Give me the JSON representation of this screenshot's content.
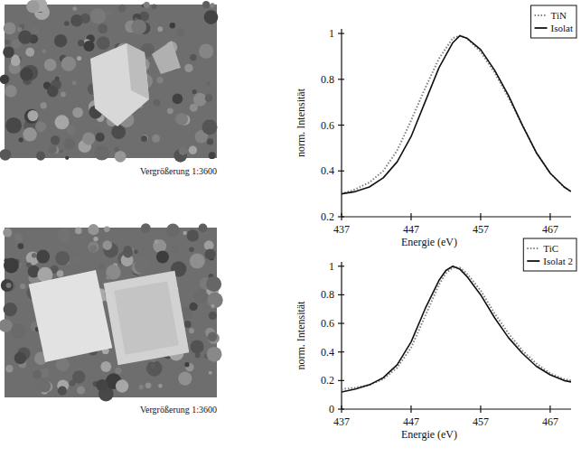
{
  "chart_data": [
    {
      "type": "line",
      "x_label": "Energie (eV)",
      "y_label": "norm. Intensität",
      "x": [
        437,
        439,
        441,
        443,
        445,
        447,
        449,
        451,
        453,
        454,
        455,
        457,
        459,
        461,
        463,
        465,
        467,
        469,
        470
      ],
      "series": [
        {
          "name": "TiN",
          "color": "#808080",
          "line_style": "dotted",
          "values": [
            0.3,
            0.32,
            0.35,
            0.4,
            0.49,
            0.62,
            0.76,
            0.89,
            0.98,
            0.99,
            0.98,
            0.92,
            0.83,
            0.72,
            0.6,
            0.48,
            0.39,
            0.33,
            0.31
          ]
        },
        {
          "name": "Isolat",
          "color": "#111111",
          "line_style": "solid",
          "values": [
            0.3,
            0.31,
            0.33,
            0.37,
            0.44,
            0.55,
            0.7,
            0.85,
            0.96,
            0.99,
            0.98,
            0.93,
            0.84,
            0.73,
            0.6,
            0.48,
            0.39,
            0.33,
            0.31
          ]
        }
      ],
      "xlim": [
        437,
        470
      ],
      "xticks": [
        437,
        447,
        457,
        467
      ],
      "ylim": [
        0.2,
        1.02
      ],
      "yticks": [
        0.2,
        0.4,
        0.6,
        0.8,
        1
      ],
      "legend": "top-right",
      "grid": false
    },
    {
      "type": "line",
      "x_label": "Energie (eV)",
      "y_label": "norm. Intensität",
      "x": [
        437,
        439,
        441,
        443,
        445,
        447,
        449,
        451,
        452,
        453,
        454,
        455,
        457,
        459,
        461,
        463,
        465,
        467,
        469,
        470
      ],
      "series": [
        {
          "name": "TiC",
          "color": "#808080",
          "line_style": "dotted",
          "values": [
            0.14,
            0.15,
            0.17,
            0.21,
            0.29,
            0.43,
            0.65,
            0.87,
            0.95,
            0.99,
            0.99,
            0.95,
            0.83,
            0.67,
            0.53,
            0.41,
            0.32,
            0.25,
            0.21,
            0.2
          ]
        },
        {
          "name": "Isolat 2",
          "color": "#111111",
          "line_style": "solid",
          "values": [
            0.12,
            0.14,
            0.17,
            0.22,
            0.31,
            0.47,
            0.7,
            0.9,
            0.97,
            1.0,
            0.98,
            0.93,
            0.8,
            0.64,
            0.5,
            0.39,
            0.3,
            0.24,
            0.2,
            0.19
          ]
        }
      ],
      "xlim": [
        437,
        470
      ],
      "xticks": [
        437,
        447,
        457,
        467
      ],
      "ylim": [
        0,
        1.03
      ],
      "yticks": [
        0,
        0.2,
        0.4,
        0.6,
        0.8,
        1
      ],
      "legend": "top-right",
      "grid": false
    }
  ],
  "images": [
    {
      "caption": "Vergrößerung 1:3600"
    },
    {
      "caption": "Vergrößerung 1:3600"
    }
  ]
}
